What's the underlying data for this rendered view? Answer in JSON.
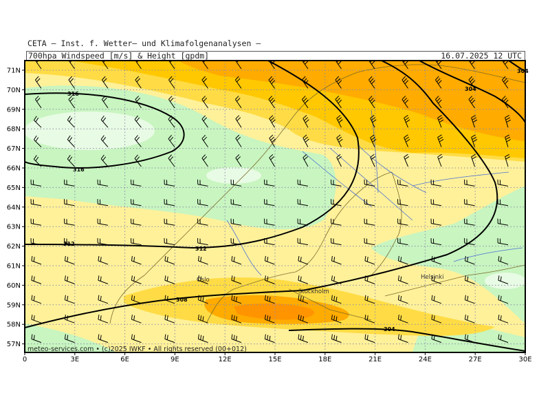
{
  "header": {
    "institution": "CETA — Inst. f. Wetter— und Klimafolgenanalysen —",
    "product": "700hpa_Windspeed_[m/s]_&_Height_[gpdm]",
    "datetime": "16.07.2025 12 UTC"
  },
  "map": {
    "lat_labels": [
      "71N",
      "70N",
      "69N",
      "68N",
      "67N",
      "66N",
      "65N",
      "64N",
      "63N",
      "62N",
      "61N",
      "60N",
      "59N",
      "58N",
      "57N"
    ],
    "lon_labels": [
      "0",
      "3E",
      "6E",
      "9E",
      "12E",
      "15E",
      "18E",
      "21E",
      "24E",
      "27E",
      "30E"
    ],
    "contour_labels": [
      "316",
      "316",
      "312",
      "312",
      "308",
      "304",
      "304",
      "304"
    ],
    "cities": [
      "Oslo",
      "Stockholm",
      "Helsinki"
    ],
    "credit": "meteo-services.com • (c)2025 IWKF • All rights reserved (00+012)",
    "colors": {
      "pale_green": "#e8fbe4",
      "light_green": "#c8f5c0",
      "light_yellow": "#fff19a",
      "yellow": "#ffdc45",
      "gold": "#ffc800",
      "orange": "#ffab00",
      "dark_orange": "#ff9400",
      "contour": "#000000",
      "grid": "#8a8aa8",
      "rivers": "#4a6fd4",
      "coast": "#7a6a2a"
    }
  }
}
